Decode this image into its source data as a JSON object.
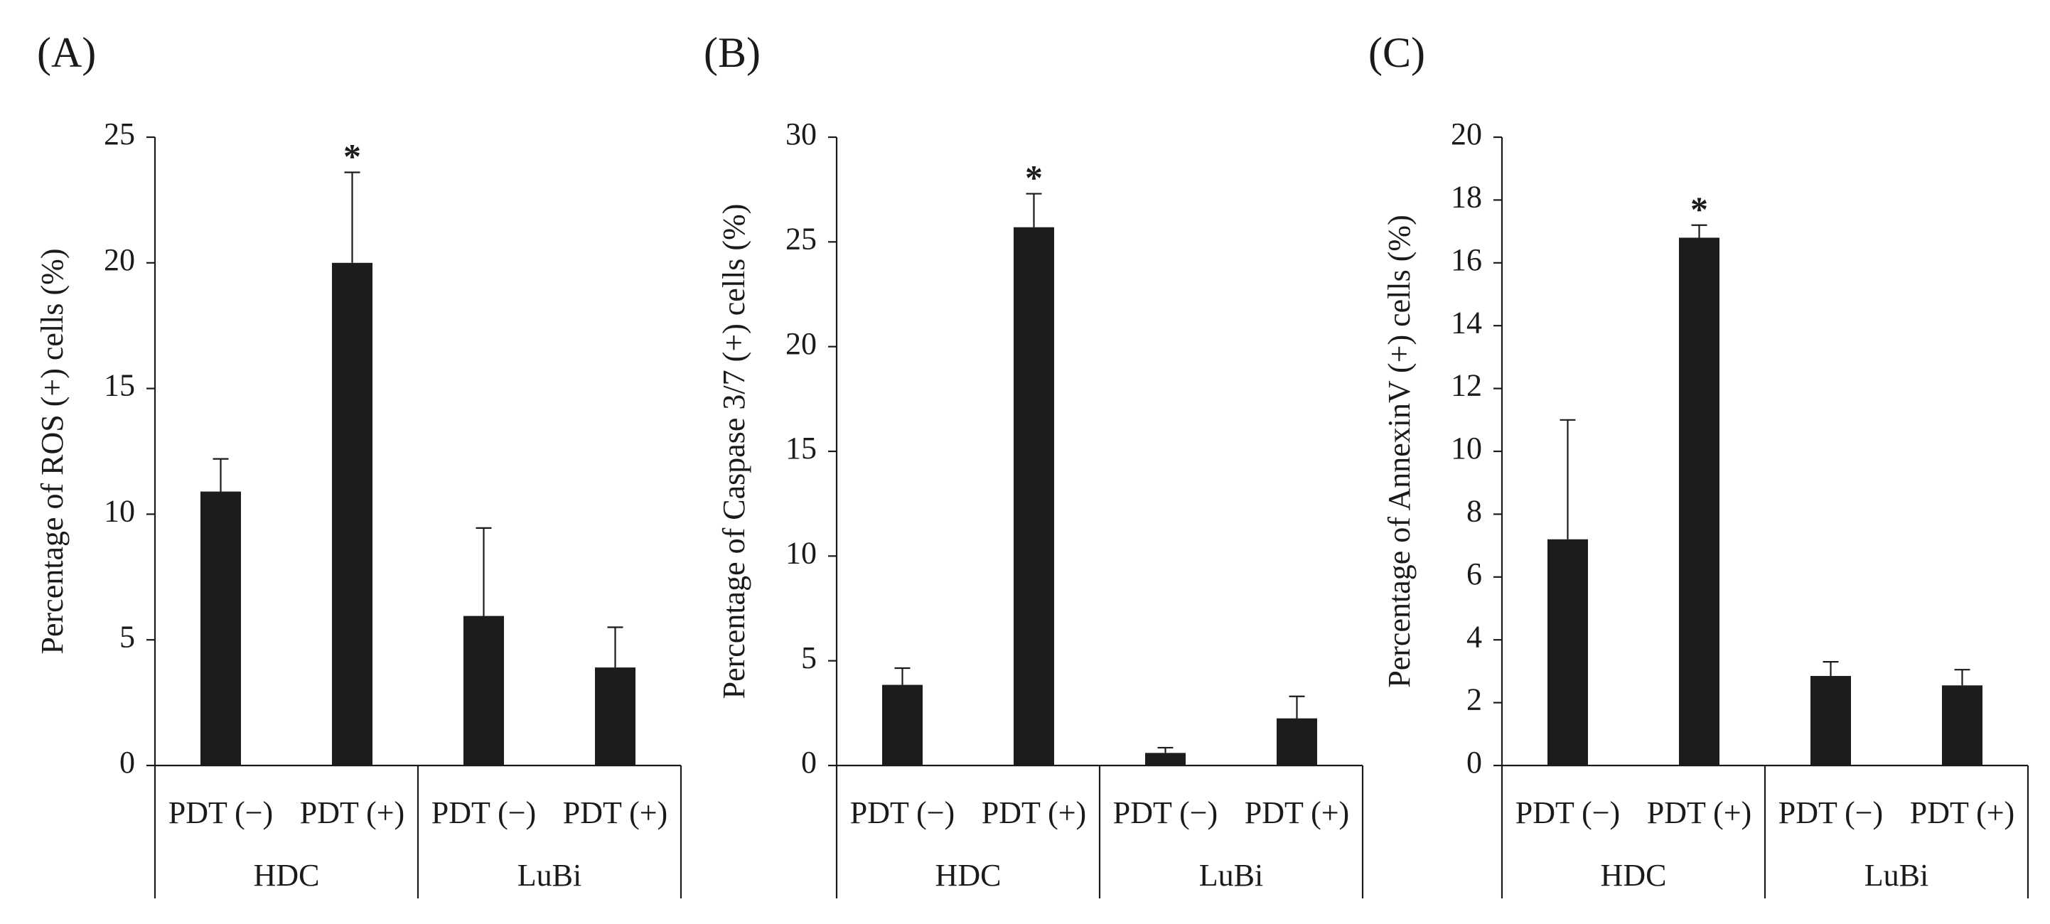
{
  "chart_data": [
    {
      "panel": "(A)",
      "type": "bar",
      "ylabel": "Percentage of ROS (+) cells (%)",
      "ylim": [
        0,
        25
      ],
      "yticks": [
        0,
        5,
        10,
        15,
        20,
        25
      ],
      "categories": [
        "PDT (−)",
        "PDT (+)",
        "PDT (−)",
        "PDT (+)"
      ],
      "groups": [
        {
          "label": "HDC",
          "span": [
            0,
            1
          ]
        },
        {
          "label": "LuBi",
          "span": [
            2,
            3
          ]
        }
      ],
      "values": [
        10.9,
        20.0,
        5.95,
        3.9
      ],
      "errors": [
        1.3,
        3.6,
        3.5,
        1.6
      ],
      "annotations": [
        "",
        "*",
        "",
        ""
      ]
    },
    {
      "panel": "(B)",
      "type": "bar",
      "ylabel": "Percentage of Caspase 3/7 (+) cells (%)",
      "ylim": [
        0,
        30
      ],
      "yticks": [
        0,
        5,
        10,
        15,
        20,
        25,
        30
      ],
      "categories": [
        "PDT (−)",
        "PDT (+)",
        "PDT (−)",
        "PDT (+)"
      ],
      "groups": [
        {
          "label": "HDC",
          "span": [
            0,
            1
          ]
        },
        {
          "label": "LuBi",
          "span": [
            2,
            3
          ]
        }
      ],
      "values": [
        3.85,
        25.7,
        0.6,
        2.25
      ],
      "errors": [
        0.8,
        1.6,
        0.25,
        1.05
      ],
      "annotations": [
        "",
        "*",
        "",
        ""
      ]
    },
    {
      "panel": "(C)",
      "type": "bar",
      "ylabel": "Percentage of AnnexinV (+) cells (%)",
      "ylim": [
        0,
        20
      ],
      "yticks": [
        0,
        2,
        4,
        6,
        8,
        10,
        12,
        14,
        16,
        18,
        20
      ],
      "categories": [
        "PDT (−)",
        "PDT (+)",
        "PDT (−)",
        "PDT (+)"
      ],
      "groups": [
        {
          "label": "HDC",
          "span": [
            0,
            1
          ]
        },
        {
          "label": "LuBi",
          "span": [
            2,
            3
          ]
        }
      ],
      "values": [
        7.2,
        16.8,
        2.85,
        2.55
      ],
      "errors": [
        3.8,
        0.4,
        0.45,
        0.5
      ],
      "annotations": [
        "",
        "*",
        "",
        ""
      ]
    }
  ],
  "colors": {
    "bar": "#1c1c1c",
    "axis": "#1a1a1a"
  }
}
